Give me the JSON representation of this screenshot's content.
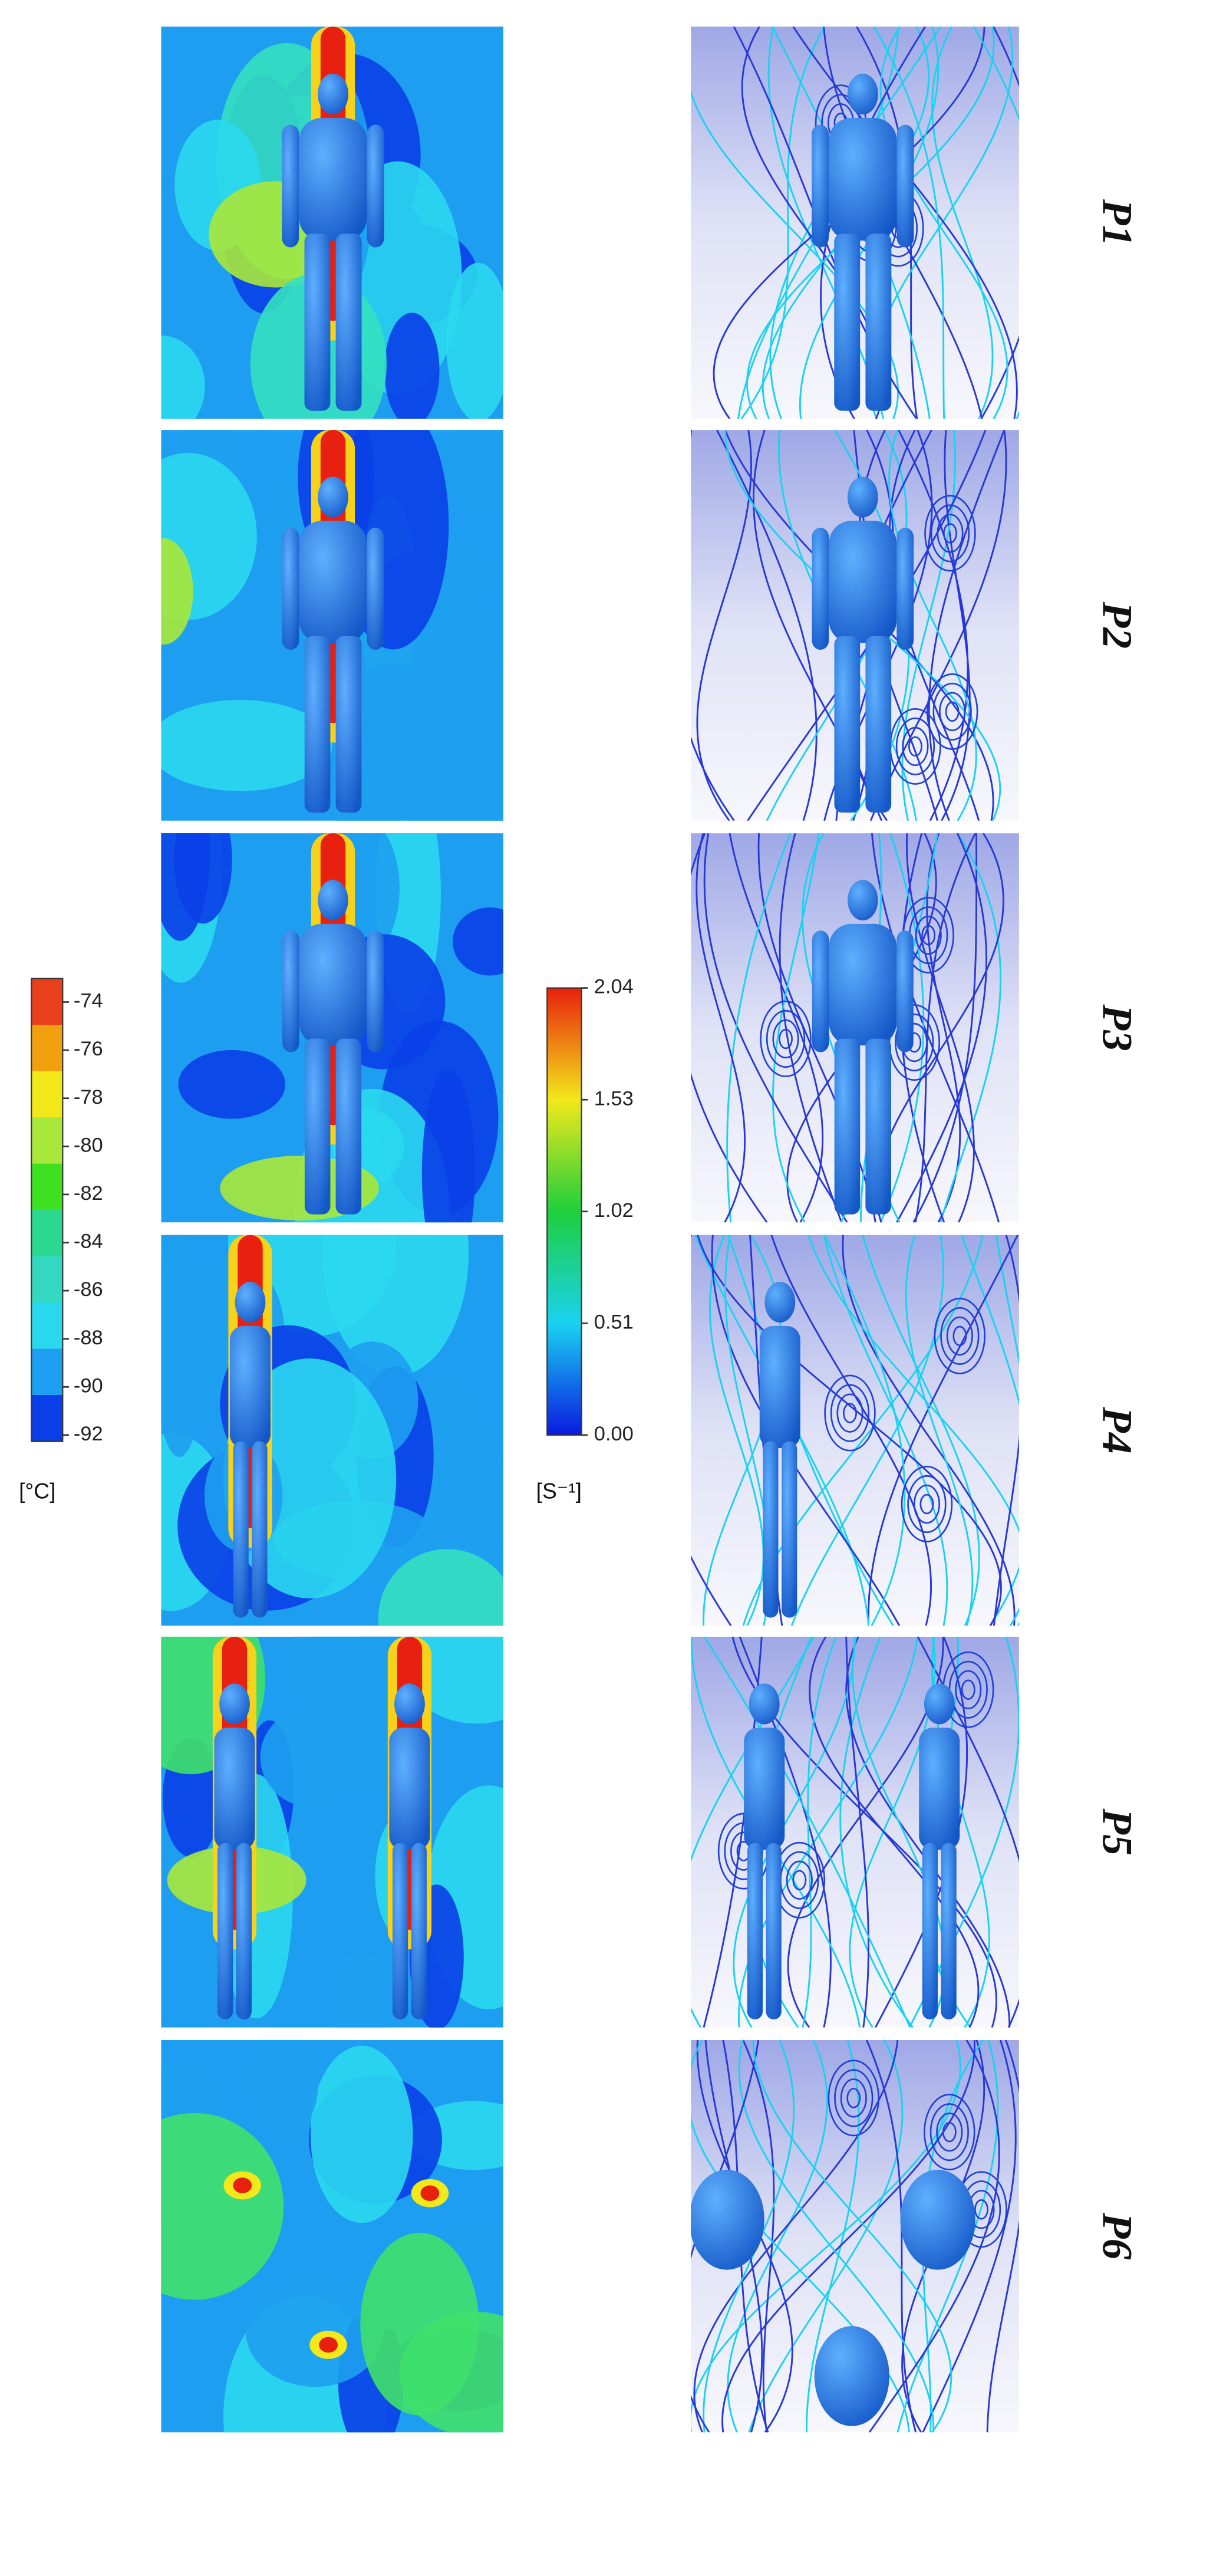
{
  "panels": [
    {
      "label": "P1"
    },
    {
      "label": "P2"
    },
    {
      "label": "P3"
    },
    {
      "label": "P4"
    },
    {
      "label": "P5"
    },
    {
      "label": "P6"
    }
  ],
  "colorbars": [
    {
      "ticks": [
        "-74",
        "-76",
        "-78",
        "-80",
        "-82",
        "-84",
        "-86",
        "-88",
        "-90",
        "-92"
      ],
      "unit": "[°C]"
    },
    {
      "ticks": [
        "2.04",
        "1.53",
        "1.02",
        "0.51",
        "0.00"
      ],
      "unit": "[S⁻¹]"
    }
  ]
}
